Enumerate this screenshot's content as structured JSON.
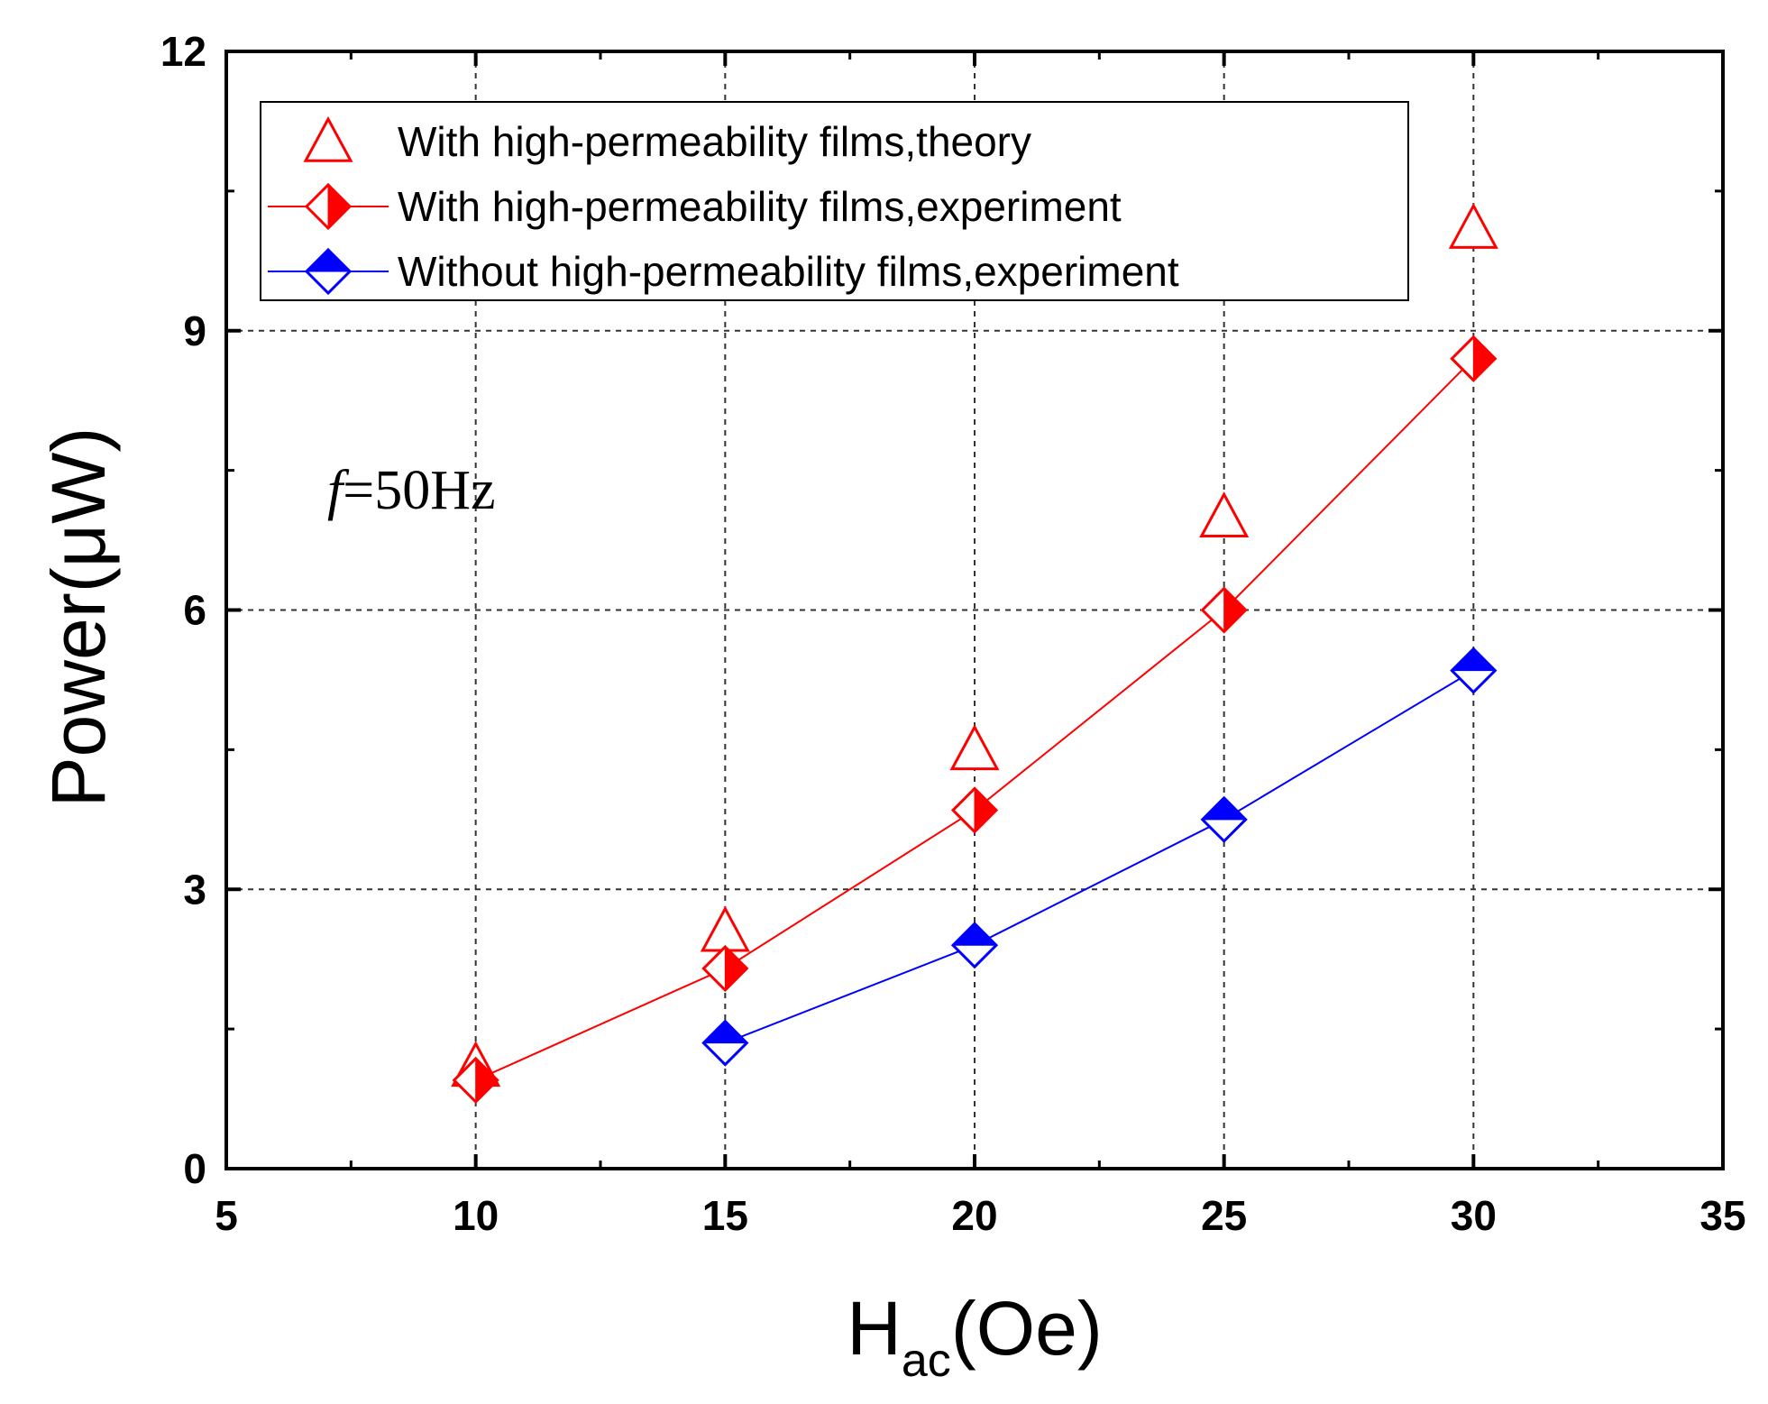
{
  "chart_data": {
    "type": "scatter",
    "title": "",
    "xlabel": "H",
    "xlabel_subscript": "ac",
    "xlabel_suffix": "(Oe)",
    "ylabel": "Power(μW)",
    "xlim": [
      5,
      35
    ],
    "ylim": [
      0,
      12
    ],
    "xticks": [
      5,
      10,
      15,
      20,
      25,
      30,
      35
    ],
    "yticks": [
      0,
      3,
      6,
      9,
      12
    ],
    "xtick_labels": [
      "5",
      "10",
      "15",
      "20",
      "25",
      "30",
      "35"
    ],
    "ytick_labels": [
      "0",
      "3",
      "6",
      "9",
      "12"
    ],
    "grid": true,
    "legend_position": "top-left",
    "annotation": {
      "italic_part": "f",
      "rest": "=50Hz"
    },
    "series": [
      {
        "name": "With high-permeability films,theory",
        "marker": "open-triangle",
        "line": false,
        "color": "#ff0000",
        "x": [
          10,
          15,
          20,
          25,
          30
        ],
        "y": [
          1.1,
          2.55,
          4.5,
          7.0,
          10.1
        ]
      },
      {
        "name": "With high-permeability films,experiment",
        "marker": "half-right-diamond",
        "line": true,
        "color": "#ff0000",
        "x": [
          10,
          15,
          20,
          25,
          30
        ],
        "y": [
          0.95,
          2.15,
          3.85,
          6.0,
          8.7
        ]
      },
      {
        "name": "Without high-permeability films,experiment",
        "marker": "half-top-diamond",
        "line": true,
        "color": "#0000ff",
        "x": [
          15,
          20,
          25,
          30
        ],
        "y": [
          1.35,
          2.4,
          3.75,
          5.35
        ]
      }
    ]
  }
}
